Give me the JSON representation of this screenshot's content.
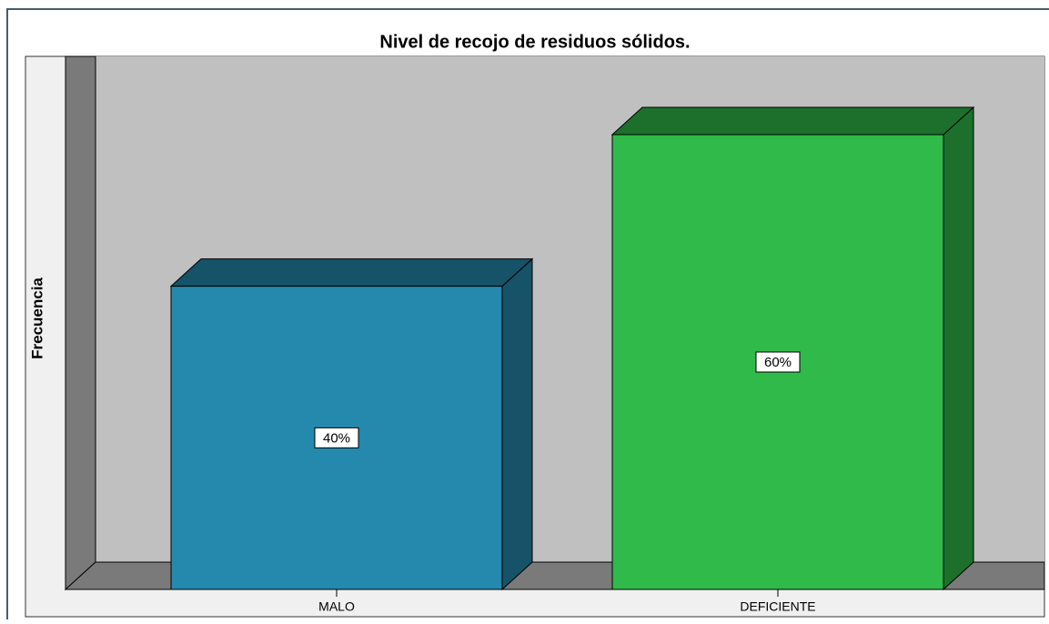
{
  "chart_data": {
    "type": "bar3d",
    "title": "Nivel de recojo de residuos sólidos.",
    "ylabel": "Frecuencia",
    "categories": [
      "MALO",
      "DEFICIENTE"
    ],
    "values": [
      40,
      60
    ],
    "value_labels": [
      "40%",
      "60%"
    ],
    "colors": [
      "#2489ad",
      "#2fba4a"
    ]
  }
}
